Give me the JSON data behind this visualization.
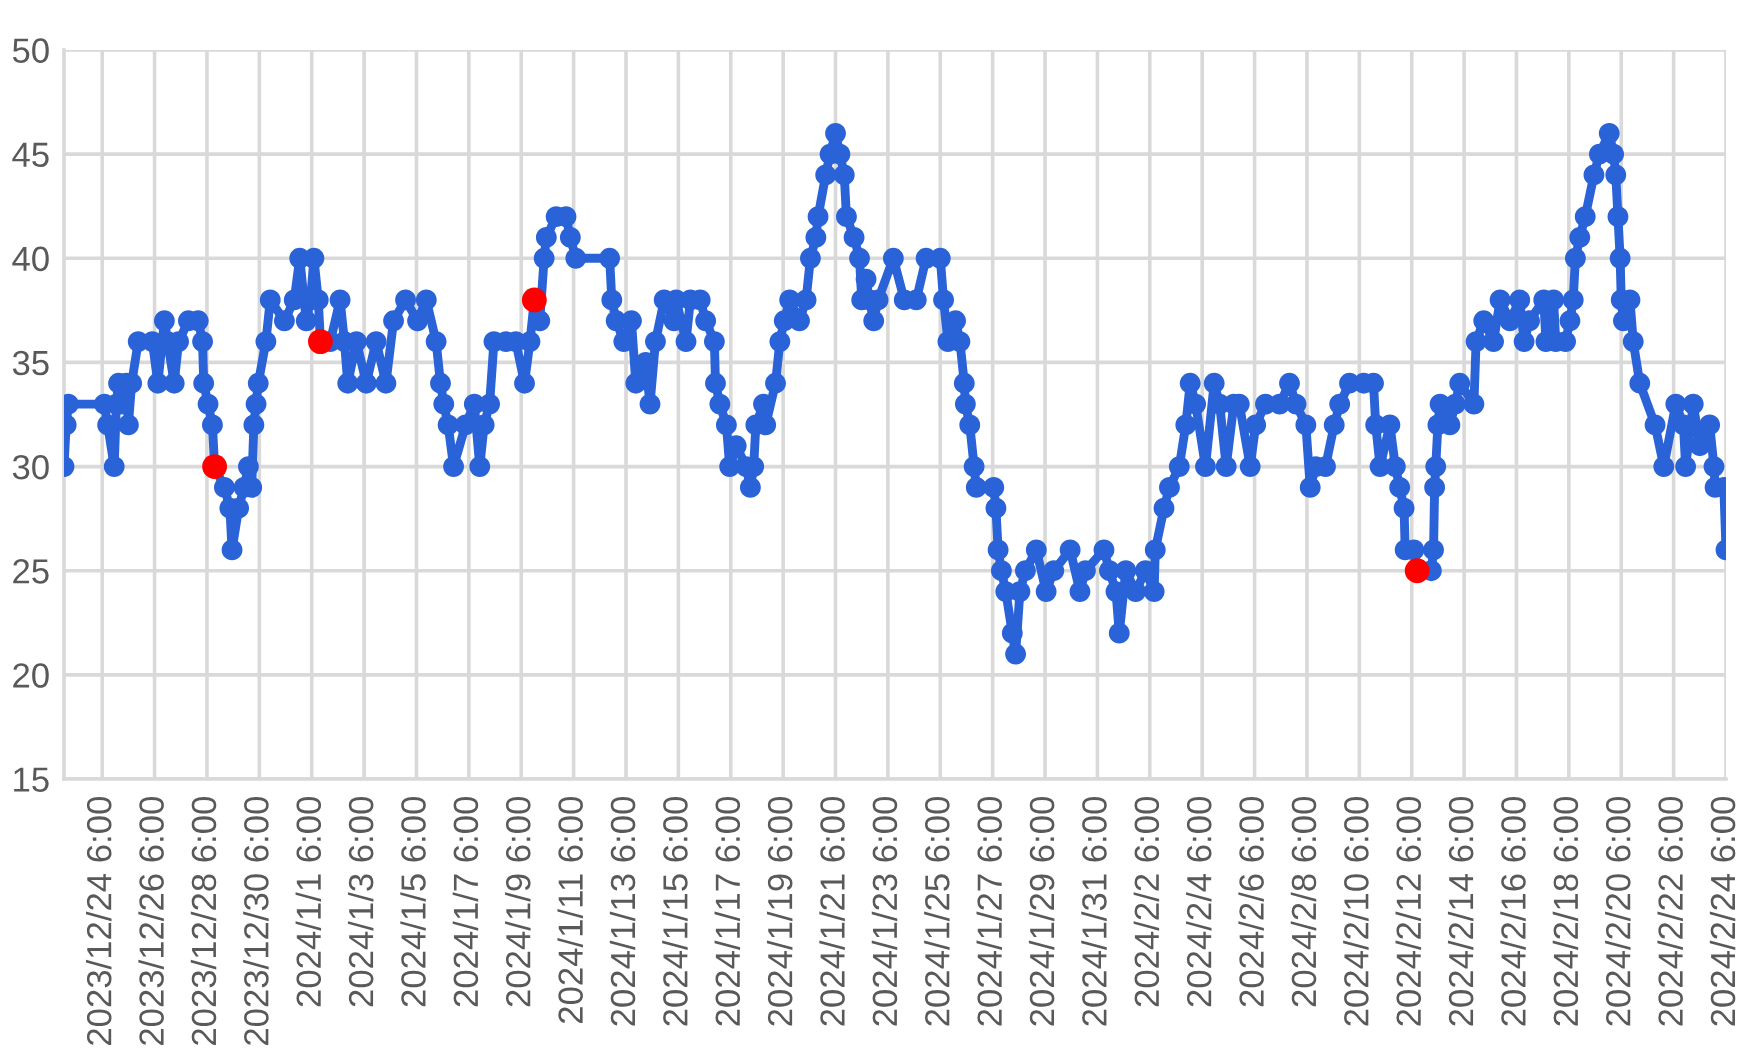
{
  "chart_data": {
    "type": "line",
    "marker": "circle",
    "line_style": "solid",
    "grid": true,
    "xlim": [
      "2023-12-22T19:00",
      "2024-02-24T06:00"
    ],
    "xticks": [
      {
        "value": "2023-12-24T06:00",
        "label": "2023/12/24 6:00"
      },
      {
        "value": "2023-12-26T06:00",
        "label": "2023/12/26 6:00"
      },
      {
        "value": "2023-12-28T06:00",
        "label": "2023/12/28 6:00"
      },
      {
        "value": "2023-12-30T06:00",
        "label": "2023/12/30 6:00"
      },
      {
        "value": "2024-01-01T06:00",
        "label": "2024/1/1 6:00"
      },
      {
        "value": "2024-01-03T06:00",
        "label": "2024/1/3 6:00"
      },
      {
        "value": "2024-01-05T06:00",
        "label": "2024/1/5 6:00"
      },
      {
        "value": "2024-01-07T06:00",
        "label": "2024/1/7 6:00"
      },
      {
        "value": "2024-01-09T06:00",
        "label": "2024/1/9 6:00"
      },
      {
        "value": "2024-01-11T06:00",
        "label": "2024/1/11 6:00"
      },
      {
        "value": "2024-01-13T06:00",
        "label": "2024/1/13 6:00"
      },
      {
        "value": "2024-01-15T06:00",
        "label": "2024/1/15 6:00"
      },
      {
        "value": "2024-01-17T06:00",
        "label": "2024/1/17 6:00"
      },
      {
        "value": "2024-01-19T06:00",
        "label": "2024/1/19 6:00"
      },
      {
        "value": "2024-01-21T06:00",
        "label": "2024/1/21 6:00"
      },
      {
        "value": "2024-01-23T06:00",
        "label": "2024/1/23 6:00"
      },
      {
        "value": "2024-01-25T06:00",
        "label": "2024/1/25 6:00"
      },
      {
        "value": "2024-01-27T06:00",
        "label": "2024/1/27 6:00"
      },
      {
        "value": "2024-01-29T06:00",
        "label": "2024/1/29 6:00"
      },
      {
        "value": "2024-01-31T06:00",
        "label": "2024/1/31 6:00"
      },
      {
        "value": "2024-02-02T06:00",
        "label": "2024/2/2 6:00"
      },
      {
        "value": "2024-02-04T06:00",
        "label": "2024/2/4 6:00"
      },
      {
        "value": "2024-02-06T06:00",
        "label": "2024/2/6 6:00"
      },
      {
        "value": "2024-02-08T06:00",
        "label": "2024/2/8 6:00"
      },
      {
        "value": "2024-02-10T06:00",
        "label": "2024/2/10 6:00"
      },
      {
        "value": "2024-02-12T06:00",
        "label": "2024/2/12 6:00"
      },
      {
        "value": "2024-02-14T06:00",
        "label": "2024/2/14 6:00"
      },
      {
        "value": "2024-02-16T06:00",
        "label": "2024/2/16 6:00"
      },
      {
        "value": "2024-02-18T06:00",
        "label": "2024/2/18 6:00"
      },
      {
        "value": "2024-02-20T06:00",
        "label": "2024/2/20 6:00"
      },
      {
        "value": "2024-02-22T06:00",
        "label": "2024/2/22 6:00"
      },
      {
        "value": "2024-02-24T06:00",
        "label": "2024/2/24 6:00"
      }
    ],
    "ylim": [
      15,
      50
    ],
    "yticks": [
      15,
      20,
      25,
      30,
      35,
      40,
      45,
      50
    ],
    "series": [
      {
        "color": "#2a62d8",
        "x": [
          "2023-12-22T19:00",
          "2023-12-22T21:00",
          "2023-12-22T23:00",
          "2023-12-24T08:00",
          "2023-12-24T11:00",
          "2023-12-24T17:00",
          "2023-12-24T19:00",
          "2023-12-24T21:00",
          "2023-12-25T00:00",
          "2023-12-25T04:00",
          "2023-12-25T06:00",
          "2023-12-25T09:00",
          "2023-12-25T15:00",
          "2023-12-26T04:00",
          "2023-12-26T09:00",
          "2023-12-26T15:00",
          "2023-12-26T18:00",
          "2023-12-27T00:00",
          "2023-12-27T04:00",
          "2023-12-27T13:00",
          "2023-12-27T22:00",
          "2023-12-28T02:00",
          "2023-12-28T03:00",
          "2023-12-28T07:00",
          "2023-12-28T11:00",
          "2023-12-28T13:00",
          "2023-12-28T22:00",
          "2023-12-29T03:00",
          "2023-12-29T05:00",
          "2023-12-29T11:00",
          "2023-12-29T16:00",
          "2023-12-29T20:00",
          "2023-12-29T23:00",
          "2023-12-30T01:00",
          "2023-12-30T03:00",
          "2023-12-30T05:00",
          "2023-12-30T12:00",
          "2023-12-30T16:00",
          "2023-12-31T05:00",
          "2023-12-31T14:00",
          "2023-12-31T19:00",
          "2024-01-01T01:00",
          "2024-01-01T05:00",
          "2024-01-01T08:00",
          "2024-01-01T12:00",
          "2024-01-01T14:00",
          "2024-01-01T23:00",
          "2024-01-02T08:00",
          "2024-01-02T12:00",
          "2024-01-02T15:00",
          "2024-01-02T23:00",
          "2024-01-03T08:00",
          "2024-01-03T17:00",
          "2024-01-04T02:00",
          "2024-01-04T09:00",
          "2024-01-04T20:00",
          "2024-01-05T07:00",
          "2024-01-05T15:00",
          "2024-01-06T00:00",
          "2024-01-06T04:00",
          "2024-01-06T07:00",
          "2024-01-06T11:00",
          "2024-01-06T16:00",
          "2024-01-07T03:00",
          "2024-01-07T11:00",
          "2024-01-07T16:00",
          "2024-01-07T20:00",
          "2024-01-08T01:00",
          "2024-01-08T05:00",
          "2024-01-08T16:00",
          "2024-01-09T01:00",
          "2024-01-09T09:00",
          "2024-01-09T14:00",
          "2024-01-09T18:00",
          "2024-01-09T23:00",
          "2024-01-10T03:00",
          "2024-01-10T05:00",
          "2024-01-10T14:00",
          "2024-01-10T23:00",
          "2024-01-11T03:00",
          "2024-01-11T08:00",
          "2024-01-12T15:00",
          "2024-01-12T17:00",
          "2024-01-12T21:00",
          "2024-01-13T04:00",
          "2024-01-13T11:00",
          "2024-01-13T15:00",
          "2024-01-14T00:00",
          "2024-01-14T04:00",
          "2024-01-14T09:00",
          "2024-01-14T17:00",
          "2024-01-15T02:00",
          "2024-01-15T04:00",
          "2024-01-15T13:00",
          "2024-01-15T17:00",
          "2024-01-16T02:00",
          "2024-01-16T07:00",
          "2024-01-16T15:00",
          "2024-01-16T16:00",
          "2024-01-16T20:00",
          "2024-01-17T02:00",
          "2024-01-17T05:00",
          "2024-01-17T11:00",
          "2024-01-17T20:00",
          "2024-01-18T00:00",
          "2024-01-18T03:00",
          "2024-01-18T05:00",
          "2024-01-18T12:00",
          "2024-01-18T14:00",
          "2024-01-18T23:00",
          "2024-01-19T03:00",
          "2024-01-19T07:00",
          "2024-01-19T12:00",
          "2024-01-19T21:00",
          "2024-01-20T03:00",
          "2024-01-20T07:00",
          "2024-01-20T12:00",
          "2024-01-20T14:00",
          "2024-01-20T21:00",
          "2024-01-21T01:00",
          "2024-01-21T06:00",
          "2024-01-21T10:00",
          "2024-01-21T14:00",
          "2024-01-21T16:00",
          "2024-01-21T23:00",
          "2024-01-22T04:00",
          "2024-01-22T06:00",
          "2024-01-22T10:00",
          "2024-01-22T13:00",
          "2024-01-22T17:00",
          "2024-01-22T21:00",
          "2024-01-23T11:00",
          "2024-01-23T21:00",
          "2024-01-24T08:00",
          "2024-01-24T17:00",
          "2024-01-25T06:00",
          "2024-01-25T09:00",
          "2024-01-25T13:00",
          "2024-01-25T20:00",
          "2024-01-26T00:00",
          "2024-01-26T04:00",
          "2024-01-26T05:00",
          "2024-01-26T09:00",
          "2024-01-26T13:00",
          "2024-01-26T15:00",
          "2024-01-27T07:00",
          "2024-01-27T09:00",
          "2024-01-27T11:00",
          "2024-01-27T14:00",
          "2024-01-27T18:00",
          "2024-01-28T00:00",
          "2024-01-28T03:00",
          "2024-01-28T07:00",
          "2024-01-28T12:00",
          "2024-01-28T22:00",
          "2024-01-29T07:00",
          "2024-01-29T14:00",
          "2024-01-30T05:00",
          "2024-01-30T14:00",
          "2024-01-30T19:00",
          "2024-01-31T12:00",
          "2024-01-31T17:00",
          "2024-01-31T23:00",
          "2024-02-01T02:00",
          "2024-02-01T08:00",
          "2024-02-01T17:00",
          "2024-02-02T02:00",
          "2024-02-02T10:00",
          "2024-02-02T11:00",
          "2024-02-02T19:00",
          "2024-02-03T00:00",
          "2024-02-03T09:00",
          "2024-02-03T15:00",
          "2024-02-03T19:00",
          "2024-02-04T00:00",
          "2024-02-04T09:00",
          "2024-02-04T17:00",
          "2024-02-04T22:00",
          "2024-02-05T04:00",
          "2024-02-05T11:00",
          "2024-02-05T16:00",
          "2024-02-06T02:00",
          "2024-02-06T07:00",
          "2024-02-06T16:00",
          "2024-02-07T05:00",
          "2024-02-07T14:00",
          "2024-02-07T20:00",
          "2024-02-08T05:00",
          "2024-02-08T09:00",
          "2024-02-08T14:00",
          "2024-02-08T23:00",
          "2024-02-09T07:00",
          "2024-02-09T12:00",
          "2024-02-09T21:00",
          "2024-02-10T10:00",
          "2024-02-10T19:00",
          "2024-02-10T21:00",
          "2024-02-11T01:00",
          "2024-02-11T10:00",
          "2024-02-11T15:00",
          "2024-02-11T19:00",
          "2024-02-11T23:00",
          "2024-02-12T00:00",
          "2024-02-12T08:00",
          "2024-02-12T11:00",
          "2024-02-13T00:00",
          "2024-02-13T02:00",
          "2024-02-13T03:00",
          "2024-02-13T04:00",
          "2024-02-13T06:00",
          "2024-02-13T08:00",
          "2024-02-13T17:00",
          "2024-02-13T22:00",
          "2024-02-14T02:00",
          "2024-02-14T15:00",
          "2024-02-14T17:00",
          "2024-02-15T00:00",
          "2024-02-15T09:00",
          "2024-02-15T15:00",
          "2024-02-16T00:00",
          "2024-02-16T09:00",
          "2024-02-16T13:00",
          "2024-02-16T18:00",
          "2024-02-17T07:00",
          "2024-02-17T09:00",
          "2024-02-17T16:00",
          "2024-02-17T18:00",
          "2024-02-18T03:00",
          "2024-02-18T07:00",
          "2024-02-18T10:00",
          "2024-02-18T12:00",
          "2024-02-18T16:00",
          "2024-02-18T21:00",
          "2024-02-19T05:00",
          "2024-02-19T10:00",
          "2024-02-19T19:00",
          "2024-02-19T23:00",
          "2024-02-20T01:00",
          "2024-02-20T03:00",
          "2024-02-20T05:00",
          "2024-02-20T06:00",
          "2024-02-20T08:00",
          "2024-02-20T14:00",
          "2024-02-20T17:00",
          "2024-02-20T23:00",
          "2024-02-21T13:00",
          "2024-02-21T21:00",
          "2024-02-22T08:00",
          "2024-02-22T15:00",
          "2024-02-22T17:00",
          "2024-02-23T00:00",
          "2024-02-23T06:00",
          "2024-02-23T15:00",
          "2024-02-23T19:00",
          "2024-02-23T20:00",
          "2024-02-24T04:00",
          "2024-02-24T06:00"
        ],
        "values": [
          30,
          32,
          33,
          33,
          32,
          30,
          33,
          34,
          33,
          34,
          32,
          34,
          36,
          36,
          34,
          37,
          36,
          34,
          36,
          37,
          37,
          36,
          34,
          33,
          32,
          30,
          29,
          28,
          26,
          28,
          29,
          30,
          29,
          32,
          33,
          34,
          36,
          38,
          37,
          38,
          40,
          37,
          38,
          40,
          38,
          36,
          36,
          38,
          36,
          34,
          36,
          34,
          36,
          34,
          37,
          38,
          37,
          38,
          36,
          34,
          33,
          32,
          30,
          32,
          33,
          30,
          32,
          33,
          36,
          36,
          36,
          34,
          36,
          38,
          37,
          40,
          41,
          42,
          42,
          41,
          40,
          40,
          38,
          37,
          36,
          37,
          34,
          35,
          33,
          36,
          38,
          37,
          38,
          36,
          38,
          38,
          37,
          36,
          34,
          33,
          32,
          30,
          31,
          30,
          29,
          30,
          32,
          33,
          32,
          34,
          36,
          37,
          38,
          37,
          38,
          40,
          41,
          42,
          44,
          45,
          46,
          45,
          44,
          42,
          41,
          40,
          38,
          39,
          38,
          37,
          38,
          40,
          38,
          38,
          40,
          40,
          38,
          36,
          37,
          36,
          34,
          33,
          32,
          30,
          29,
          29,
          28,
          26,
          25,
          24,
          22,
          21,
          24,
          25,
          26,
          24,
          25,
          26,
          24,
          25,
          26,
          25,
          24,
          22,
          25,
          24,
          25,
          24,
          26,
          28,
          29,
          30,
          32,
          34,
          33,
          30,
          34,
          33,
          30,
          33,
          33,
          30,
          32,
          33,
          33,
          34,
          33,
          32,
          29,
          30,
          30,
          32,
          33,
          34,
          34,
          34,
          32,
          30,
          32,
          30,
          29,
          28,
          26,
          26,
          25,
          25,
          26,
          29,
          30,
          32,
          33,
          32,
          33,
          34,
          33,
          36,
          37,
          36,
          38,
          37,
          38,
          36,
          37,
          38,
          36,
          38,
          36,
          36,
          37,
          38,
          40,
          41,
          42,
          44,
          45,
          46,
          45,
          44,
          42,
          40,
          38,
          37,
          38,
          36,
          34,
          32,
          30,
          33,
          32,
          30,
          33,
          31,
          32,
          30,
          29,
          29,
          26
        ]
      },
      {
        "type": "scatter",
        "color": "#ff0000",
        "x": [
          "2023-12-28T13:00",
          "2024-01-01T14:00",
          "2024-01-09T18:00",
          "2024-02-12T11:00"
        ],
        "values": [
          30,
          36,
          38,
          25
        ]
      }
    ]
  }
}
